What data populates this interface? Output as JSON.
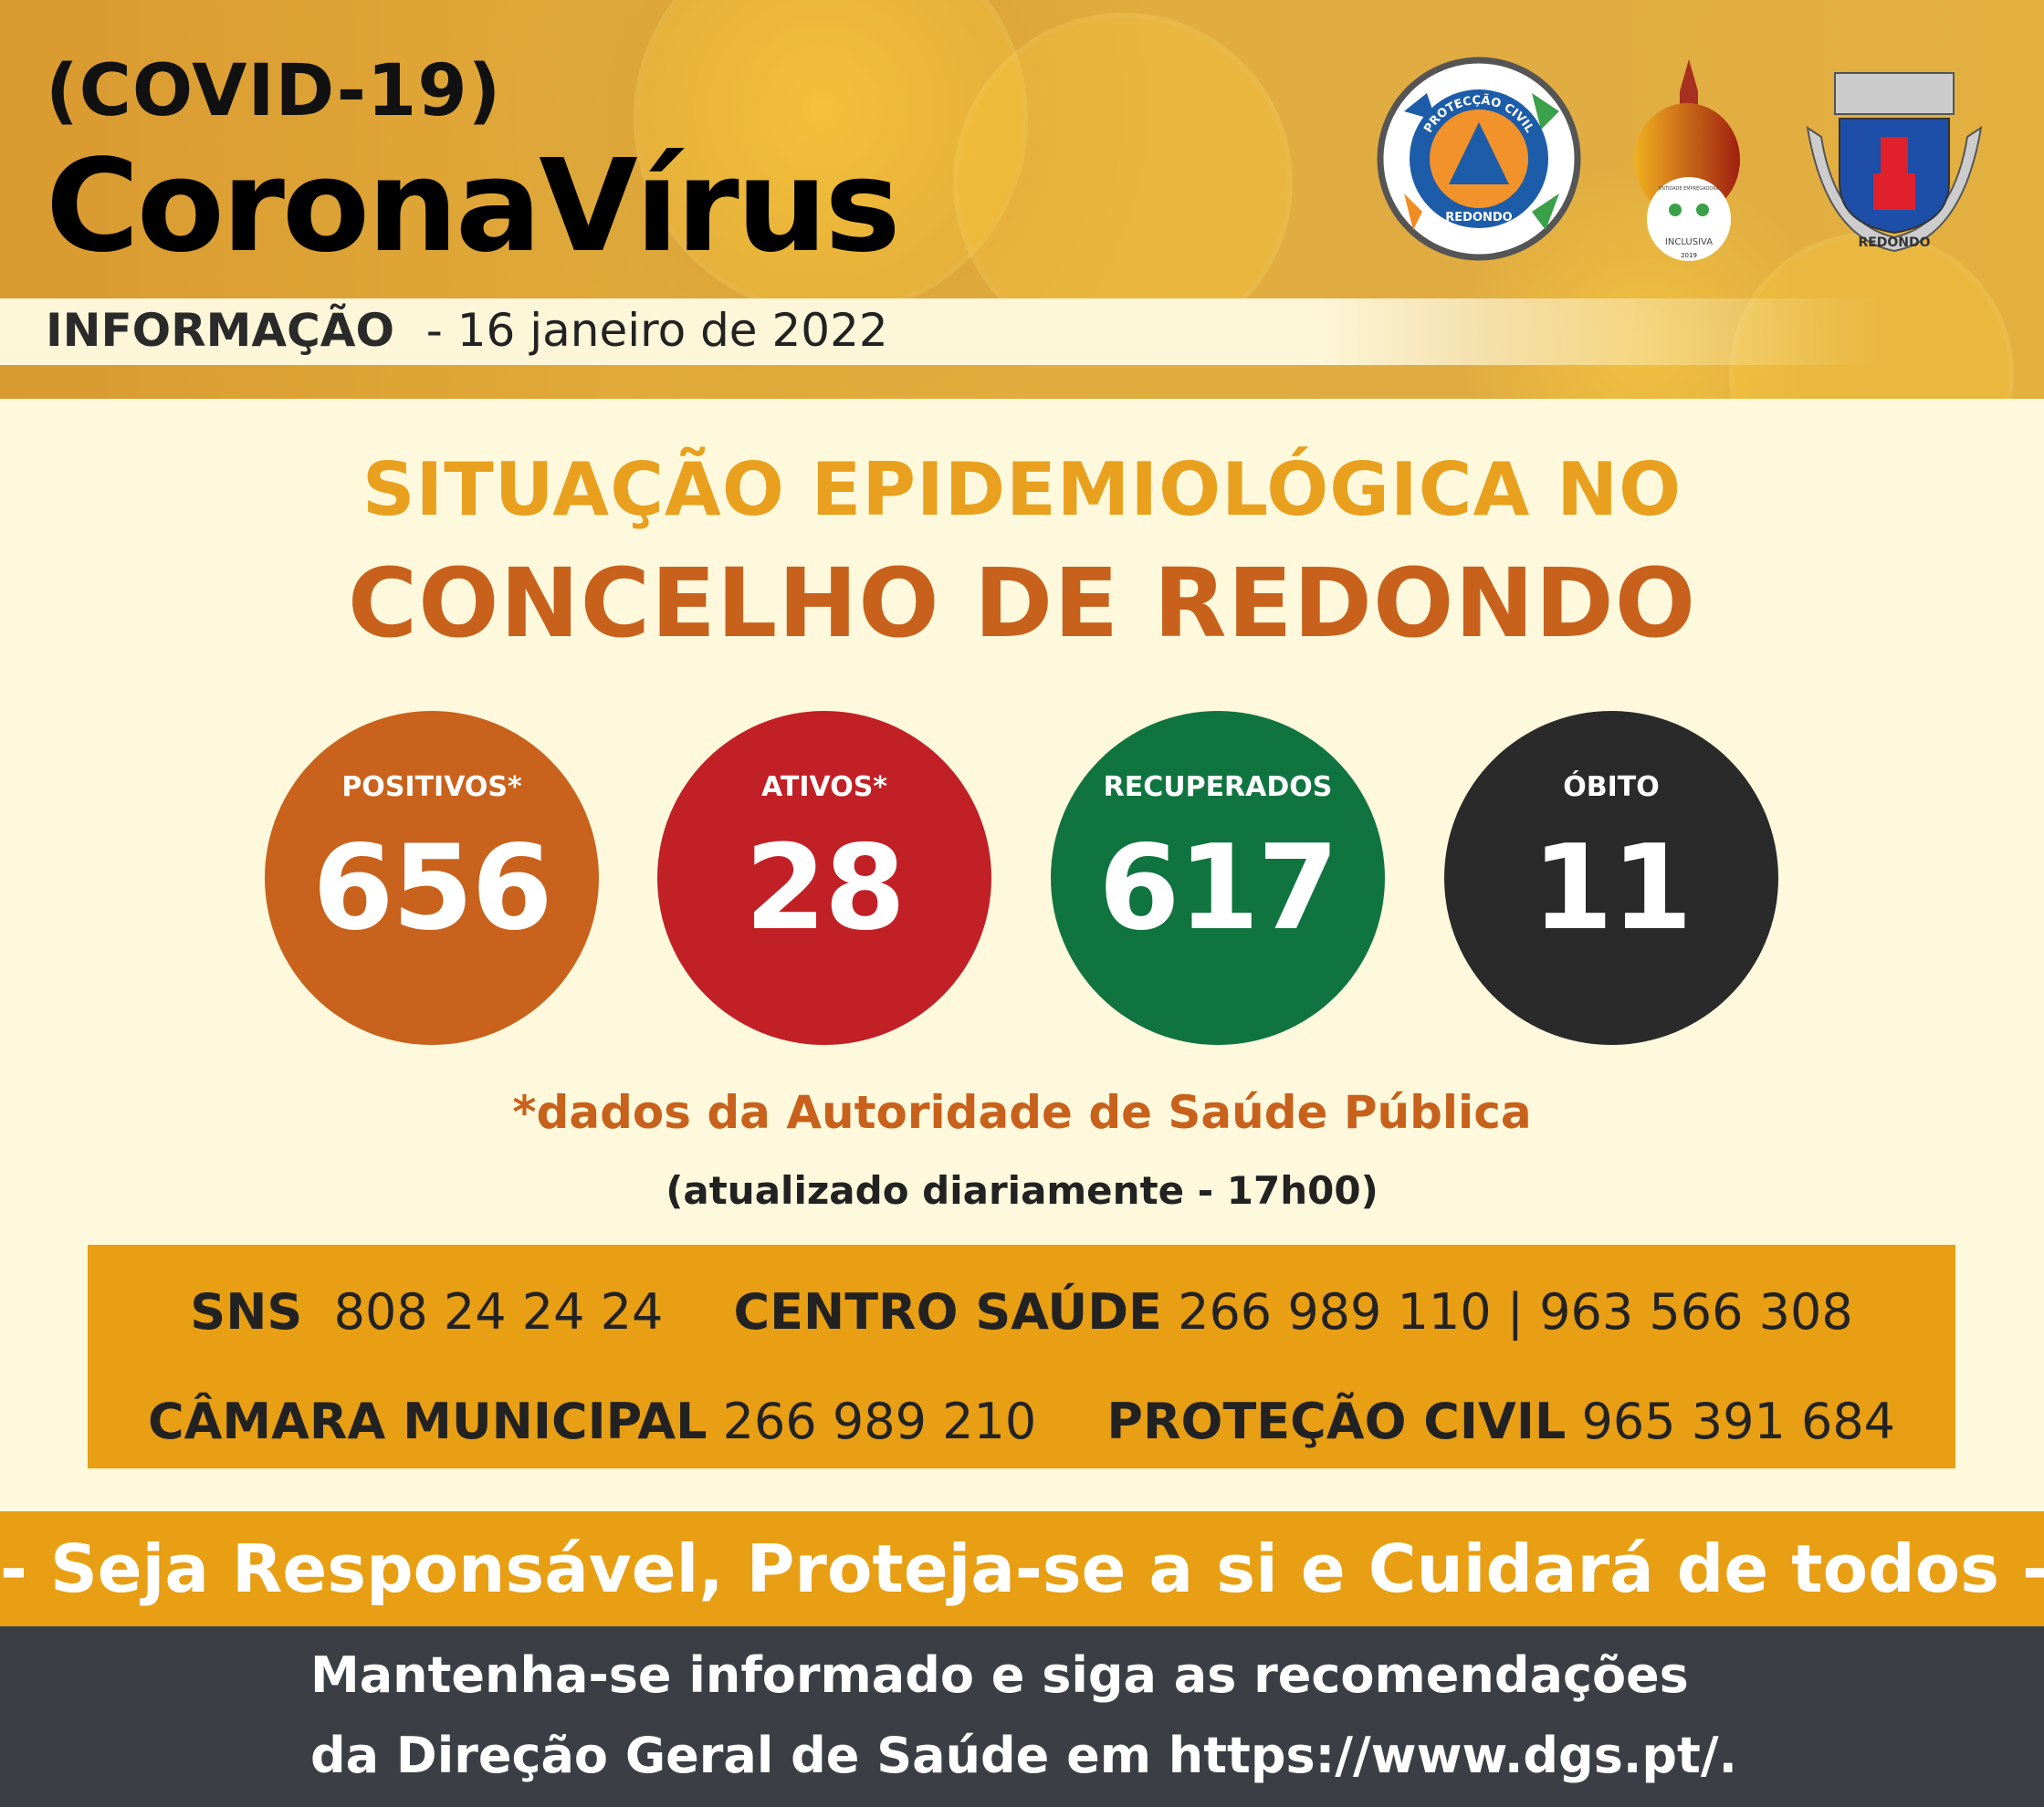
{
  "header": {
    "covid": "(COVID-19)",
    "title": "CoronaVírus",
    "info_label": "INFORMAÇÃO",
    "date": "- 16 janeiro de 2022"
  },
  "logos": {
    "protecao_civil": {
      "top": "PROTECÇÃO CIVIL",
      "bottom": "REDONDO"
    },
    "inclusiva": {
      "top": "ENTIDADE EMPREGADORA",
      "main": "INCLUSIVA",
      "year": "2019"
    },
    "brasao": {
      "text": "REDONDO"
    }
  },
  "headline": {
    "line1": "SITUAÇÃO EPIDEMIOLÓGICA NO",
    "line2": "CONCELHO DE REDONDO"
  },
  "stats": [
    {
      "label": "POSITIVOS*",
      "value": "656",
      "color": "#c8621c"
    },
    {
      "label": "ATIVOS*",
      "value": "28",
      "color": "#c12026"
    },
    {
      "label": "RECUPERADOS",
      "value": "617",
      "color": "#107440"
    },
    {
      "label": "ÓBITO",
      "value": "11",
      "color": "#2a2a2a"
    }
  ],
  "notes": {
    "source": "*dados da Autoridade de Saúde Pública",
    "updated": "(atualizado diariamente - 17h00)"
  },
  "contacts": [
    {
      "name": "SNS",
      "phone": "808 24 24 24"
    },
    {
      "name": "CENTRO SAÚDE",
      "phone": "266 989 110 | 963 566 308"
    },
    {
      "name": "CÂMARA MUNICIPAL",
      "phone": "266 989 210"
    },
    {
      "name": "PROTEÇÃO CIVIL",
      "phone": "965 391 684"
    }
  ],
  "slogan": "- Seja Responsável, Proteja-se a si e Cuidará de todos -",
  "footer": {
    "line1": "Mantenha-se informado e siga as recomendações",
    "line2": "da Direção Geral de Saúde em https://www.dgs.pt/."
  }
}
